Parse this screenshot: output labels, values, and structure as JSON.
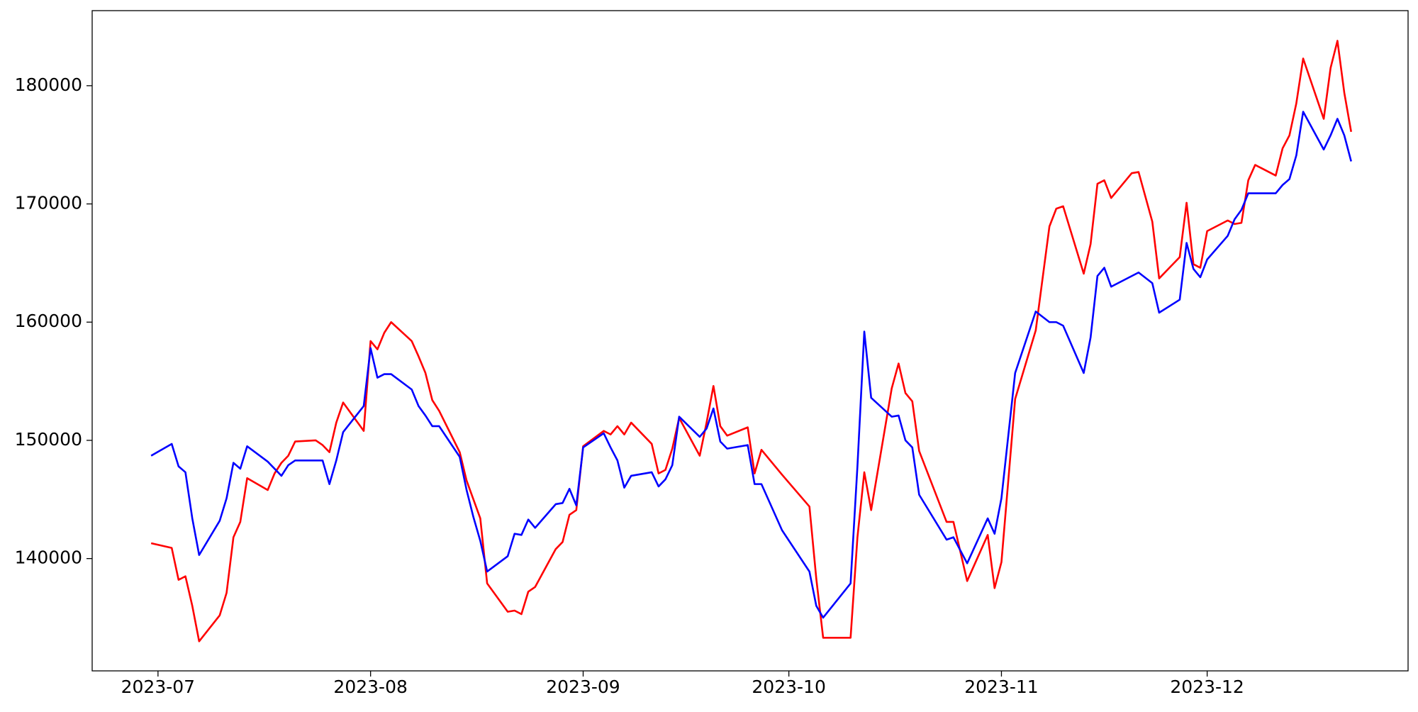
{
  "chart_data": {
    "type": "line",
    "x": [
      19538,
      19541,
      19542,
      19543,
      19544,
      19545,
      19548,
      19549,
      19550,
      19551,
      19552,
      19555,
      19556,
      19557,
      19558,
      19559,
      19562,
      19563,
      19564,
      19565,
      19566,
      19569,
      19570,
      19571,
      19572,
      19573,
      19576,
      19577,
      19578,
      19579,
      19580,
      19583,
      19584,
      19585,
      19586,
      19587,
      19590,
      19591,
      19592,
      19593,
      19594,
      19597,
      19598,
      19599,
      19600,
      19601,
      19604,
      19605,
      19606,
      19607,
      19608,
      19611,
      19612,
      19613,
      19614,
      19615,
      19618,
      19619,
      19620,
      19621,
      19622,
      19625,
      19626,
      19627,
      19630,
      19634,
      19635,
      19636,
      19640,
      19641,
      19642,
      19643,
      19646,
      19647,
      19648,
      19649,
      19650,
      19654,
      19655,
      19657,
      19660,
      19661,
      19662,
      19664,
      19667,
      19669,
      19670,
      19671,
      19674,
      19675,
      19676,
      19677,
      19678,
      19681,
      19682,
      19684,
      19685,
      19688,
      19689,
      19690,
      19691,
      19692,
      19695,
      19696,
      19697,
      19698,
      19699,
      19702,
      19703,
      19704,
      19705,
      19706,
      19709,
      19710,
      19711,
      19712,
      19713
    ],
    "series": [
      {
        "color": "#ff0000",
        "values": [
          141300,
          140900,
          138200,
          138500,
          136000,
          133000,
          135200,
          137100,
          141800,
          143100,
          146800,
          145800,
          147200,
          148100,
          148700,
          149900,
          150000,
          149600,
          149000,
          151500,
          153200,
          150800,
          158400,
          157700,
          159100,
          160000,
          158400,
          157100,
          155700,
          153400,
          152500,
          149000,
          146600,
          145000,
          143400,
          137900,
          135500,
          135600,
          135300,
          137200,
          137600,
          140800,
          141400,
          143700,
          144100,
          149500,
          150800,
          150500,
          151200,
          150500,
          151500,
          149700,
          147200,
          147500,
          149300,
          151900,
          148700,
          151500,
          154600,
          151200,
          150400,
          151100,
          147200,
          149200,
          147100,
          144400,
          138300,
          133300,
          133300,
          141800,
          147300,
          144100,
          154400,
          156500,
          154000,
          153300,
          149100,
          143100,
          143100,
          138100,
          142000,
          137500,
          139700,
          153500,
          159300,
          168100,
          169600,
          169800,
          164100,
          166600,
          171700,
          172000,
          170500,
          172600,
          172700,
          168500,
          163700,
          165500,
          170100,
          164900,
          164600,
          167700,
          168600,
          168300,
          168400,
          172000,
          173300,
          172400,
          174700,
          175800,
          178500,
          182300,
          177200,
          181500,
          183800,
          179400,
          176100
        ]
      },
      {
        "color": "#0000ff",
        "values": [
          148700,
          149700,
          147800,
          147300,
          143400,
          140300,
          143200,
          145100,
          148100,
          147600,
          149500,
          148200,
          147600,
          147000,
          147900,
          148300,
          148300,
          148300,
          146300,
          148300,
          150700,
          152900,
          157800,
          155300,
          155600,
          155600,
          154300,
          152900,
          152100,
          151200,
          151200,
          148600,
          145800,
          143500,
          141500,
          138900,
          140200,
          142100,
          142000,
          143300,
          142600,
          144600,
          144700,
          145900,
          144500,
          149400,
          150600,
          149400,
          148300,
          146000,
          147000,
          147300,
          146100,
          146700,
          147900,
          152000,
          150300,
          151000,
          152700,
          149900,
          149300,
          149600,
          146300,
          146300,
          142400,
          138900,
          136000,
          135000,
          137900,
          147800,
          159200,
          153600,
          152000,
          152100,
          150000,
          149400,
          145400,
          141600,
          141800,
          139600,
          143400,
          142100,
          145100,
          155700,
          160900,
          160000,
          160000,
          159700,
          155700,
          158700,
          163900,
          164600,
          163000,
          163900,
          164200,
          163300,
          160800,
          161900,
          166700,
          164500,
          163800,
          165300,
          167300,
          168700,
          169500,
          170900,
          170900,
          170900,
          171600,
          172100,
          174100,
          177800,
          174600,
          175800,
          177200,
          175800,
          173600
        ]
      }
    ],
    "xlim": [
      19529.4,
      19721.3
    ],
    "xticks": [
      {
        "value": 19539,
        "label": "2023-07"
      },
      {
        "value": 19570,
        "label": "2023-08"
      },
      {
        "value": 19601,
        "label": "2023-09"
      },
      {
        "value": 19631,
        "label": "2023-10"
      },
      {
        "value": 19662,
        "label": "2023-11"
      },
      {
        "value": 19692,
        "label": "2023-12"
      }
    ],
    "ylim": [
      130500,
      186350
    ],
    "yticks": [
      140000,
      150000,
      160000,
      170000,
      180000
    ],
    "grid": false
  }
}
